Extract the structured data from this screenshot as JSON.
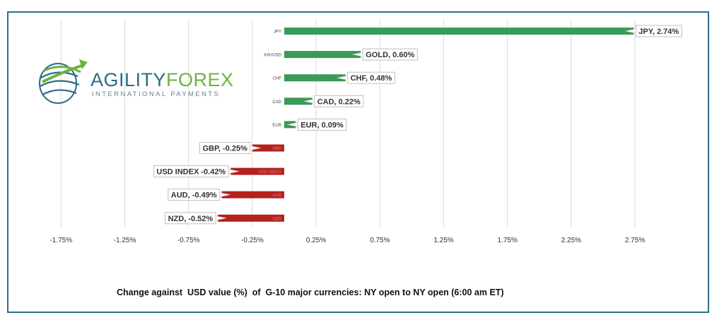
{
  "logo": {
    "brand_a": "AGILITY",
    "brand_b": "FOREX",
    "subtitle": "INTERNATIONAL PAYMENTS"
  },
  "caption": "Change against  USD value (%)  of  G-10 major currencies: NY open to NY open (6:00 am ET)",
  "colors": {
    "positive": "#3a9a57",
    "negative": "#b5211f",
    "frame": "#2f6f8a",
    "grid": "#d9d9d9"
  },
  "chart_data": {
    "type": "bar",
    "orientation": "horizontal",
    "xlim": [
      -2.0,
      3.0
    ],
    "xticks": [
      -1.75,
      -1.25,
      -0.75,
      -0.25,
      0.25,
      0.75,
      1.25,
      1.75,
      2.25,
      2.75
    ],
    "xtick_labels": [
      "-1.75%",
      "-1.25%",
      "-0.75%",
      "-0.25%",
      "0.25%",
      "0.75%",
      "1.25%",
      "1.75%",
      "2.25%",
      "2.75%"
    ],
    "grid": true,
    "bars": [
      {
        "category": "JPY",
        "value": 2.74,
        "label": "JPY, 2.74%"
      },
      {
        "category": "XAUUSD",
        "value": 0.6,
        "label": "GOLD, 0.60%"
      },
      {
        "category": "CHF",
        "value": 0.48,
        "label": "CHF, 0.48%"
      },
      {
        "category": "CAD",
        "value": 0.22,
        "label": "CAD, 0.22%"
      },
      {
        "category": "EUR",
        "value": 0.09,
        "label": "EUR, 0.09%"
      },
      {
        "category": "GBP",
        "value": -0.25,
        "label": "GBP, -0.25%"
      },
      {
        "category": "USD INDEX",
        "value": -0.42,
        "label": "USD INDEX -0.42%"
      },
      {
        "category": "AUD",
        "value": -0.49,
        "label": "AUD, -0.49%"
      },
      {
        "category": "NZD",
        "value": -0.52,
        "label": "NZD, -0.52%"
      }
    ]
  }
}
